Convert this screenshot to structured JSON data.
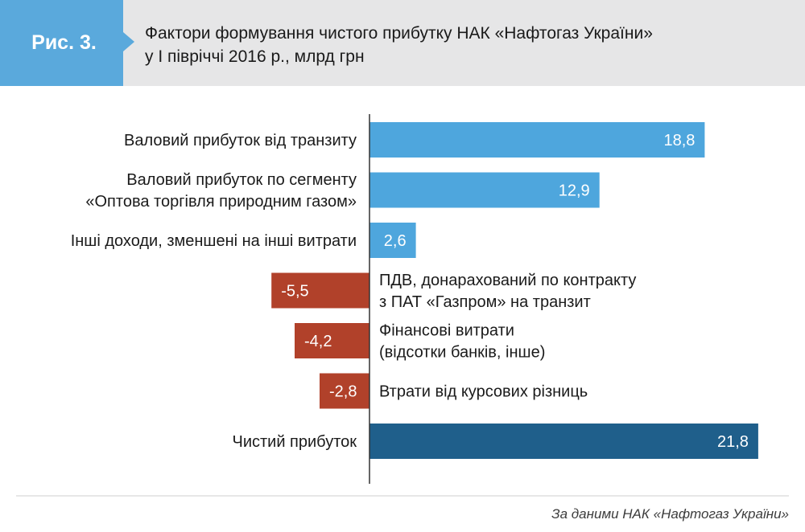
{
  "figure": {
    "badge": "Рис. 3.",
    "title_line1": "Фактори формування чистого прибутку НАК  «Нафтогаз України»",
    "title_line2": "у І півріччі 2016 р., млрд грн"
  },
  "source": "За даними НАК «Нафтогаз України»",
  "colors": {
    "positive": "#4ea6dd",
    "negative": "#b1412a",
    "total": "#1f5f8b",
    "header_bg": "#e6e6e7",
    "badge_bg": "#5aa9dc"
  },
  "chart_data": {
    "type": "bar",
    "orientation": "horizontal",
    "unit": "млрд грн",
    "bars": [
      {
        "label_lines": [
          "Валовий прибуток від транзиту"
        ],
        "value": 18.8,
        "value_label": "18,8",
        "kind": "positive"
      },
      {
        "label_lines": [
          "Валовий прибуток по сегменту",
          "«Оптова торгівля природним газом»"
        ],
        "value": 12.9,
        "value_label": "12,9",
        "kind": "positive"
      },
      {
        "label_lines": [
          "Інші доходи, зменшені на інші витрати"
        ],
        "value": 2.6,
        "value_label": "2,6",
        "kind": "positive"
      },
      {
        "label_lines": [
          "ПДВ, донарахований по контракту",
          "з ПАТ «Газпром» на транзит"
        ],
        "value": -5.5,
        "value_label": "-5,5",
        "kind": "negative"
      },
      {
        "label_lines": [
          "Фінансові витрати",
          "(відсотки банків, інше)"
        ],
        "value": -4.2,
        "value_label": "-4,2",
        "kind": "negative"
      },
      {
        "label_lines": [
          "Втрати від курсових різниць"
        ],
        "value": -2.8,
        "value_label": "-2,8",
        "kind": "negative"
      },
      {
        "label_lines": [
          "Чистий прибуток"
        ],
        "value": 21.8,
        "value_label": "21,8",
        "kind": "total"
      }
    ]
  }
}
